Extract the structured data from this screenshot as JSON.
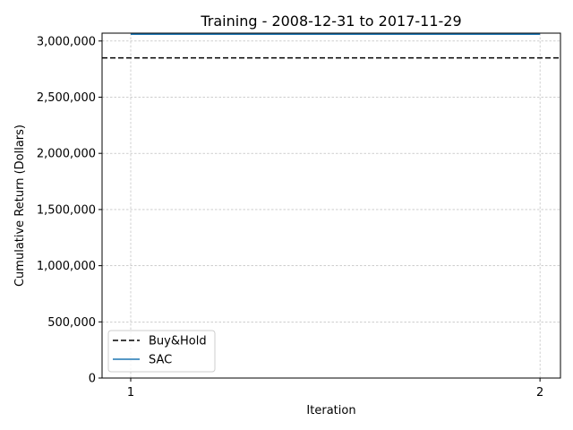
{
  "chart_data": {
    "type": "line",
    "title": "Training - 2008-12-31 to 2017-11-29",
    "xlabel": "Iteration",
    "ylabel": "Cumulative Return (Dollars)",
    "x": [
      1,
      2
    ],
    "xlim": [
      0.93,
      2.05
    ],
    "ylim": [
      0,
      3070000
    ],
    "xticks": [
      1,
      2
    ],
    "xtick_labels": [
      "1",
      "2"
    ],
    "yticks": [
      0,
      500000,
      1000000,
      1500000,
      2000000,
      2500000,
      3000000
    ],
    "ytick_labels": [
      "0",
      "500,000",
      "1,000,000",
      "1,500,000",
      "2,000,000",
      "2,500,000",
      "3,000,000"
    ],
    "grid": true,
    "legend_position": "bottom-left",
    "series": [
      {
        "name": "Buy&Hold",
        "style": "dashed",
        "color": "#000000",
        "values": [
          2850000,
          2850000
        ],
        "span": "full"
      },
      {
        "name": "SAC",
        "style": "solid",
        "color": "#1f77b4",
        "values": [
          3060000,
          3060000
        ]
      }
    ]
  }
}
